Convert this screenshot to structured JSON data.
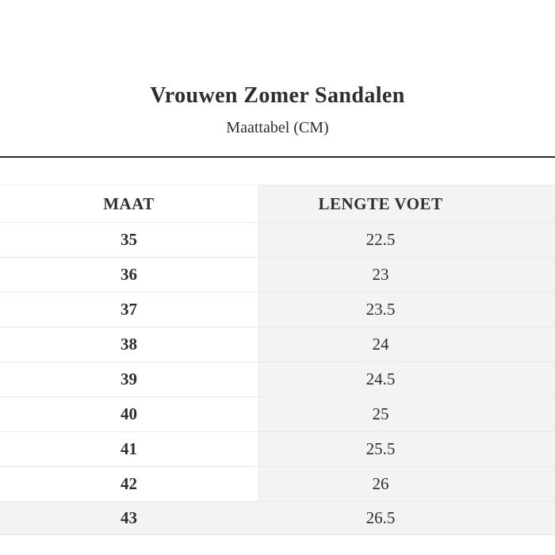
{
  "page": {
    "title": "Vrouwen Zomer Sandalen",
    "subtitle": "Maattabel (CM)"
  },
  "table": {
    "headers": {
      "maat": "MAAT",
      "lengte": "LENGTE VOET"
    },
    "rows": [
      {
        "maat": "35",
        "lengte": "22.5"
      },
      {
        "maat": "36",
        "lengte": "23"
      },
      {
        "maat": "37",
        "lengte": "23.5"
      },
      {
        "maat": "38",
        "lengte": "24"
      },
      {
        "maat": "39",
        "lengte": "24.5"
      },
      {
        "maat": "40",
        "lengte": "25"
      },
      {
        "maat": "41",
        "lengte": "25.5"
      },
      {
        "maat": "42",
        "lengte": "26"
      },
      {
        "maat": "43",
        "lengte": "26.5"
      }
    ]
  },
  "colors": {
    "text": "#2e2e2e",
    "shaded_cell": "#f3f3f4",
    "row_separator": "#e9e9eb",
    "divider": "#2b2b2b",
    "background": "#ffffff"
  },
  "chart_data": {
    "type": "table",
    "title": "Vrouwen Zomer Sandalen",
    "subtitle": "Maattabel (CM)",
    "columns": [
      "MAAT",
      "LENGTE VOET"
    ],
    "rows": [
      [
        "35",
        "22.5"
      ],
      [
        "36",
        "23"
      ],
      [
        "37",
        "23.5"
      ],
      [
        "38",
        "24"
      ],
      [
        "39",
        "24.5"
      ],
      [
        "40",
        "25"
      ],
      [
        "41",
        "25.5"
      ],
      [
        "42",
        "26"
      ],
      [
        "43",
        "26.5"
      ]
    ],
    "units": "cm"
  }
}
